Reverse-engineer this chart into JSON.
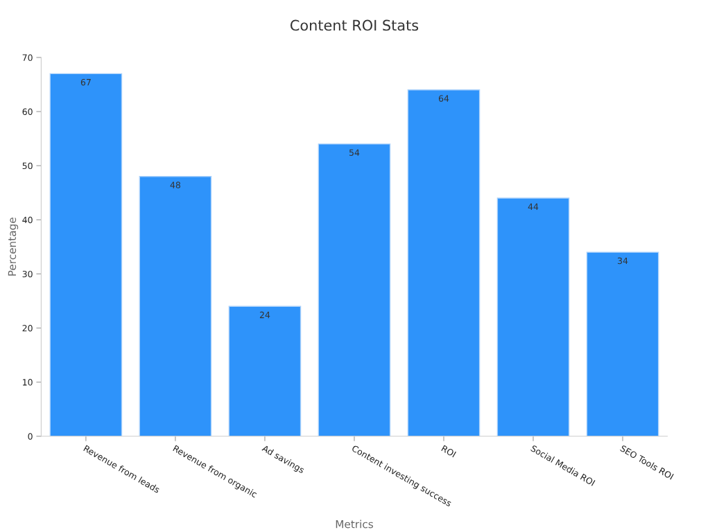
{
  "chart_data": {
    "type": "bar",
    "title": "Content ROI Stats",
    "xlabel": "Metrics",
    "ylabel": "Percentage",
    "categories": [
      "Revenue from leads",
      "Revenue from organic",
      "Ad savings",
      "Content investing success",
      "ROI",
      "Social Media ROI",
      "SEO Tools ROI"
    ],
    "values": [
      67,
      48,
      24,
      54,
      64,
      44,
      34
    ],
    "color": "#2e93fa",
    "ylim": [
      0,
      70
    ],
    "yticks": [
      0,
      10,
      20,
      30,
      40,
      50,
      60,
      70
    ],
    "grid": false,
    "data_labels": true
  }
}
